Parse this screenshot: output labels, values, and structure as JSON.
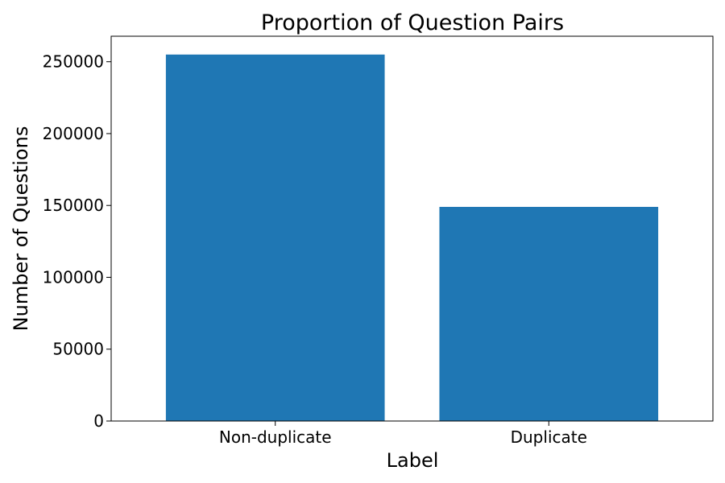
{
  "chart_data": {
    "type": "bar",
    "title": "Proportion of Question Pairs",
    "xlabel": "Label",
    "ylabel": "Number of Questions",
    "categories": [
      "Non-duplicate",
      "Duplicate"
    ],
    "values": [
      255000,
      149000
    ],
    "ylim": [
      0,
      267750
    ],
    "yticks": [
      0,
      50000,
      100000,
      150000,
      200000,
      250000
    ],
    "ytick_labels": [
      "0",
      "50000",
      "100000",
      "150000",
      "200000",
      "250000"
    ],
    "bar_color": "#1f77b4",
    "grid": false,
    "legend": "none"
  }
}
